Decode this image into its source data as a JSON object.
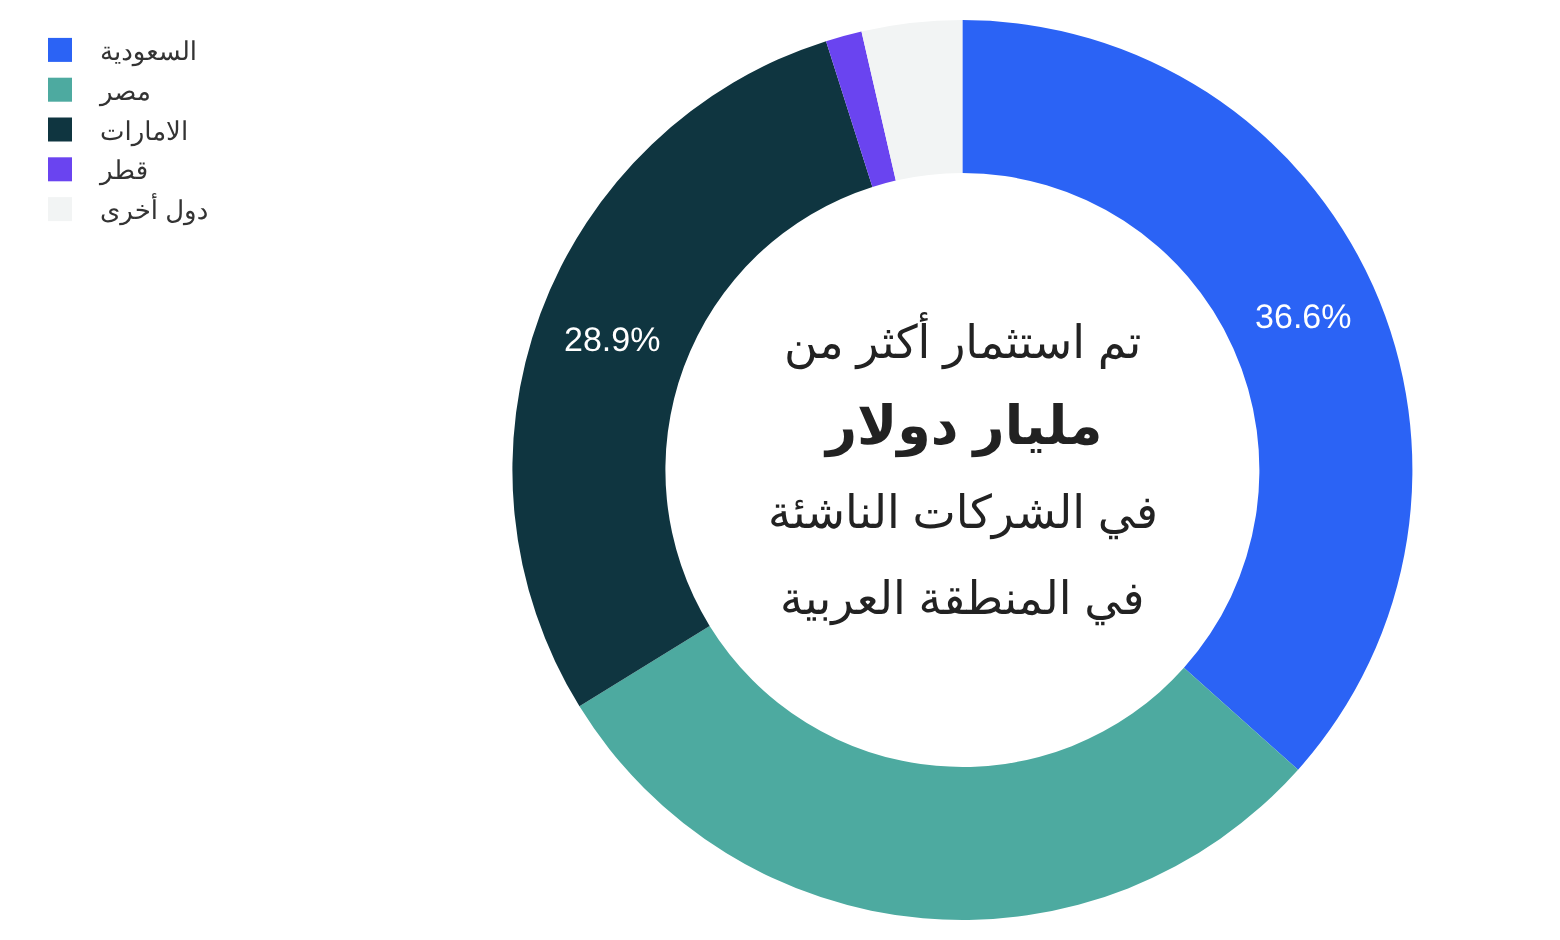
{
  "chart_data": {
    "type": "donut",
    "categories": [
      "السعودية",
      "مصر",
      "الامارات",
      "قطر",
      "دول أخرى"
    ],
    "values": [
      36.6,
      29.6,
      28.9,
      1.3,
      3.6
    ],
    "colors": [
      "#2b63f5",
      "#4daaa0",
      "#0f3540",
      "#6a44f0",
      "#f2f4f4"
    ],
    "value_labels": [
      "36.6%",
      null,
      "28.9%",
      null,
      null
    ],
    "annotations": [
      "تم استثمار أكثر من",
      "مليار دولار",
      "في الشركات الناشئة",
      "في المنطقة العربية"
    ],
    "legend": "top left"
  }
}
